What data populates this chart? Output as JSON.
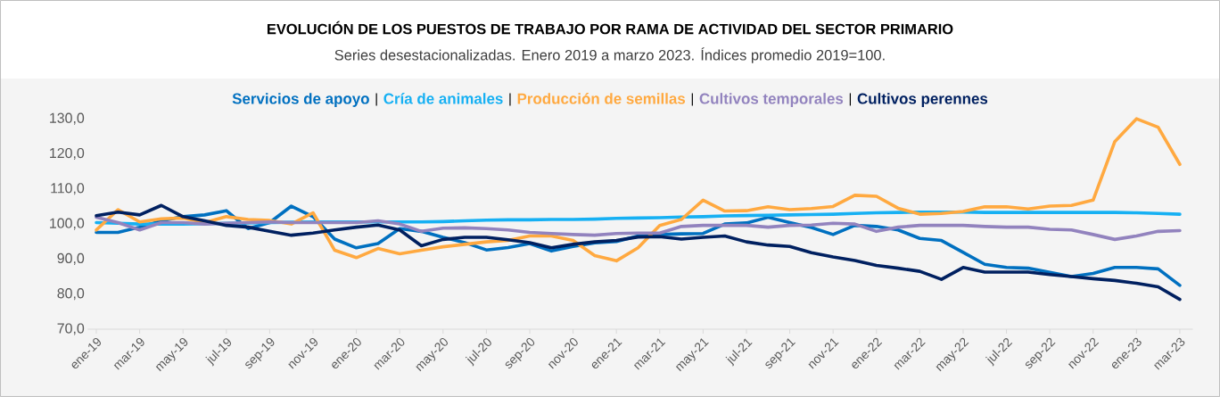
{
  "chart_data": {
    "type": "line",
    "title": "EVOLUCIÓN DE LOS PUESTOS DE TRABAJO POR RAMA DE ACTIVIDAD DEL SECTOR PRIMARIO",
    "subtitle": "Series desestacionalizadas. Enero 2019 a marzo 2023. Índices promedio 2019=100.",
    "categories": [
      "ene-19",
      null,
      "mar-19",
      null,
      "may-19",
      null,
      "jul-19",
      null,
      "sep-19",
      null,
      "nov-19",
      null,
      "ene-20",
      null,
      "mar-20",
      null,
      "may-20",
      null,
      "jul-20",
      null,
      "sep-20",
      null,
      "nov-20",
      null,
      "ene-21",
      null,
      "mar-21",
      null,
      "may-21",
      null,
      "jul-21",
      null,
      "sep-21",
      null,
      "nov-21",
      null,
      "ene-22",
      null,
      "mar-22",
      null,
      "may-22",
      null,
      "jul-22",
      null,
      "sep-22",
      null,
      "nov-22",
      null,
      "ene-23",
      null,
      "mar-23"
    ],
    "ylim": [
      70,
      130
    ],
    "yticks": [
      {
        "value": 70,
        "label": "70,0"
      },
      {
        "value": 80,
        "label": "80,0"
      },
      {
        "value": 90,
        "label": "90,0"
      },
      {
        "value": 100,
        "label": "100,0"
      },
      {
        "value": 110,
        "label": "110,0"
      },
      {
        "value": 120,
        "label": "120,0"
      },
      {
        "value": 130,
        "label": "130,0"
      }
    ],
    "legend": "top",
    "marker": "none",
    "line_style": "solid",
    "series": [
      {
        "name": "Servicios de apoyo",
        "color": "#0070c0",
        "values": [
          97.6,
          97.6,
          99.1,
          100.9,
          102.1,
          102.6,
          103.8,
          98.7,
          100.4,
          105.1,
          102.1,
          95.7,
          93.2,
          94.4,
          98.7,
          97.9,
          96.2,
          94.7,
          92.6,
          93.3,
          94.4,
          92.3,
          93.6,
          94.6,
          95.0,
          96.6,
          97.0,
          97.2,
          97.3,
          100.0,
          100.3,
          101.9,
          100.4,
          99.0,
          97.0,
          99.6,
          99.3,
          98.3,
          95.9,
          95.3,
          91.9,
          88.5,
          87.6,
          87.4,
          86.2,
          85.0,
          85.9,
          87.6,
          87.6,
          87.2,
          82.5
        ]
      },
      {
        "name": "Cría de animales",
        "color": "#16b0f3",
        "values": [
          100.4,
          100.2,
          100.0,
          100.0,
          100.0,
          100.1,
          100.2,
          100.3,
          100.4,
          100.5,
          100.6,
          100.6,
          100.6,
          100.6,
          100.6,
          100.6,
          100.7,
          100.9,
          101.1,
          101.2,
          101.2,
          101.3,
          101.3,
          101.4,
          101.6,
          101.7,
          101.8,
          102.0,
          102.1,
          102.3,
          102.4,
          102.5,
          102.6,
          102.7,
          102.8,
          103.0,
          103.2,
          103.3,
          103.4,
          103.4,
          103.4,
          103.3,
          103.3,
          103.3,
          103.3,
          103.3,
          103.3,
          103.3,
          103.2,
          103.0,
          102.8
        ]
      },
      {
        "name": "Producción de semillas",
        "color": "#ffa940",
        "values": [
          98.3,
          104.1,
          100.6,
          101.5,
          101.7,
          100.4,
          102.1,
          101.3,
          101.0,
          100.0,
          103.2,
          92.5,
          90.4,
          93.0,
          91.5,
          92.5,
          93.5,
          94.2,
          94.9,
          95.3,
          96.6,
          96.6,
          95.3,
          91.0,
          89.5,
          93.2,
          99.6,
          101.3,
          106.8,
          103.7,
          103.8,
          104.9,
          104.1,
          104.4,
          105.0,
          108.2,
          107.9,
          104.5,
          102.8,
          103.0,
          103.6,
          104.9,
          104.9,
          104.3,
          105.1,
          105.3,
          106.8,
          123.5,
          130.0,
          127.6,
          117.0
        ]
      },
      {
        "name": "Cultivos temporales",
        "color": "#9283be",
        "values": [
          101.9,
          100.4,
          98.3,
          100.4,
          100.4,
          100.0,
          100.2,
          100.4,
          100.6,
          100.4,
          100.4,
          100.4,
          100.4,
          100.9,
          100.0,
          97.9,
          98.8,
          98.9,
          98.7,
          98.3,
          97.6,
          97.3,
          97.0,
          96.8,
          97.3,
          97.4,
          97.4,
          99.3,
          99.6,
          99.6,
          99.6,
          99.1,
          99.6,
          99.7,
          100.2,
          100.0,
          97.9,
          99.1,
          99.6,
          99.6,
          99.6,
          99.3,
          99.1,
          99.1,
          98.5,
          98.3,
          97.0,
          95.6,
          96.6,
          97.9,
          98.1
        ]
      },
      {
        "name": "Cultivos perennes",
        "color": "#002060",
        "values": [
          102.4,
          103.4,
          102.6,
          105.3,
          102.1,
          100.9,
          99.6,
          99.1,
          97.9,
          96.8,
          97.4,
          98.3,
          99.1,
          99.7,
          98.3,
          93.8,
          95.6,
          96.2,
          96.2,
          95.5,
          94.7,
          93.2,
          94.2,
          94.9,
          95.3,
          96.3,
          96.4,
          95.7,
          96.2,
          96.6,
          94.9,
          94.0,
          93.6,
          91.8,
          90.6,
          89.6,
          88.2,
          87.4,
          86.5,
          84.2,
          87.6,
          86.3,
          86.3,
          86.3,
          85.6,
          85.0,
          84.4,
          83.9,
          83.1,
          82.1,
          78.5
        ]
      }
    ]
  }
}
